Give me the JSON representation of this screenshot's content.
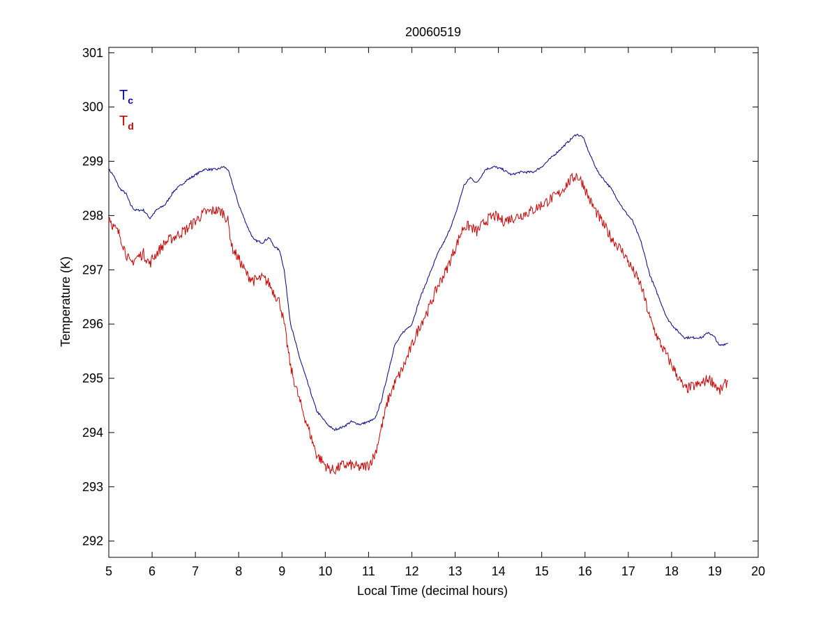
{
  "chart_data": {
    "type": "line",
    "title": "20060519",
    "xlabel": "Local Time (decimal hours)",
    "ylabel": "Temperature (K)",
    "xlim": [
      5,
      20
    ],
    "ylim": [
      291.7,
      301.1
    ],
    "xticks": [
      5,
      6,
      7,
      8,
      9,
      10,
      11,
      12,
      13,
      14,
      15,
      16,
      17,
      18,
      19,
      20
    ],
    "yticks": [
      292,
      293,
      294,
      295,
      296,
      297,
      298,
      299,
      300,
      301
    ],
    "grid": false,
    "legend": {
      "placement": "top-left",
      "entries": [
        {
          "main": "T",
          "sub": "c",
          "color": "#0000bf"
        },
        {
          "main": "T",
          "sub": "d",
          "color": "#cc0000"
        }
      ]
    },
    "series": [
      {
        "color": "#00008b",
        "noise": 0.02,
        "x": [
          5.0,
          5.1,
          5.25,
          5.4,
          5.5,
          5.6,
          5.8,
          5.95,
          6.0,
          6.1,
          6.3,
          6.5,
          6.8,
          7.0,
          7.2,
          7.5,
          7.65,
          7.75,
          7.85,
          8.0,
          8.2,
          8.35,
          8.55,
          8.7,
          8.8,
          8.95,
          9.05,
          9.2,
          9.4,
          9.6,
          9.8,
          9.95,
          10.05,
          10.2,
          10.4,
          10.6,
          10.8,
          11.0,
          11.15,
          11.3,
          11.45,
          11.6,
          11.8,
          12.0,
          12.2,
          12.4,
          12.6,
          12.8,
          13.0,
          13.2,
          13.35,
          13.5,
          13.7,
          13.9,
          14.1,
          14.3,
          14.5,
          14.8,
          15.0,
          15.2,
          15.4,
          15.6,
          15.8,
          15.95,
          16.1,
          16.3,
          16.6,
          16.9,
          17.1,
          17.3,
          17.5,
          17.7,
          17.9,
          18.1,
          18.3,
          18.5,
          18.7,
          18.85,
          19.0,
          19.1,
          19.3
        ],
        "y": [
          298.85,
          298.75,
          298.5,
          298.4,
          298.2,
          298.1,
          298.1,
          297.95,
          298.0,
          298.1,
          298.2,
          298.45,
          298.65,
          298.75,
          298.85,
          298.85,
          298.9,
          298.85,
          298.6,
          298.2,
          297.8,
          297.55,
          297.5,
          297.6,
          297.45,
          297.35,
          297.0,
          296.0,
          295.4,
          294.9,
          294.4,
          294.25,
          294.15,
          294.05,
          294.1,
          294.2,
          294.15,
          294.2,
          294.25,
          294.6,
          295.1,
          295.6,
          295.85,
          296.0,
          296.5,
          296.9,
          297.3,
          297.6,
          298.0,
          298.55,
          298.7,
          298.6,
          298.85,
          298.9,
          298.85,
          298.75,
          298.8,
          298.8,
          298.9,
          299.05,
          299.2,
          299.35,
          299.5,
          299.45,
          299.15,
          298.8,
          298.5,
          298.1,
          297.9,
          297.5,
          296.9,
          296.5,
          296.1,
          295.9,
          295.75,
          295.75,
          295.75,
          295.85,
          295.75,
          295.6,
          295.65
        ]
      },
      {
        "color": "#cc0000",
        "noise": 0.1,
        "x": [
          5.0,
          5.1,
          5.25,
          5.4,
          5.5,
          5.6,
          5.8,
          5.95,
          6.0,
          6.1,
          6.3,
          6.5,
          6.8,
          7.0,
          7.2,
          7.5,
          7.65,
          7.75,
          7.85,
          8.0,
          8.2,
          8.35,
          8.55,
          8.7,
          8.8,
          8.95,
          9.05,
          9.2,
          9.4,
          9.6,
          9.8,
          9.95,
          10.05,
          10.2,
          10.4,
          10.6,
          10.8,
          11.0,
          11.15,
          11.3,
          11.45,
          11.6,
          11.8,
          12.0,
          12.2,
          12.4,
          12.6,
          12.8,
          13.0,
          13.2,
          13.35,
          13.5,
          13.7,
          13.9,
          14.1,
          14.3,
          14.5,
          14.8,
          15.0,
          15.2,
          15.4,
          15.6,
          15.8,
          15.95,
          16.1,
          16.3,
          16.6,
          16.9,
          17.1,
          17.3,
          17.5,
          17.7,
          17.9,
          18.1,
          18.3,
          18.5,
          18.7,
          18.85,
          19.0,
          19.1,
          19.3
        ],
        "y": [
          298.0,
          297.8,
          297.65,
          297.3,
          297.1,
          297.2,
          297.3,
          297.1,
          297.2,
          297.3,
          297.5,
          297.6,
          297.75,
          297.9,
          298.05,
          298.1,
          298.05,
          297.9,
          297.4,
          297.2,
          296.9,
          296.8,
          296.85,
          296.75,
          296.6,
          296.4,
          296.0,
          295.2,
          294.6,
          294.1,
          293.6,
          293.45,
          293.35,
          293.3,
          293.4,
          293.4,
          293.35,
          293.4,
          293.6,
          294.1,
          294.6,
          294.9,
          295.2,
          295.6,
          296.0,
          296.3,
          296.7,
          297.0,
          297.4,
          297.8,
          297.8,
          297.7,
          297.9,
          298.0,
          297.9,
          297.95,
          298.0,
          298.1,
          298.2,
          298.3,
          298.4,
          298.6,
          298.75,
          298.6,
          298.3,
          298.0,
          297.6,
          297.3,
          297.0,
          296.7,
          296.1,
          295.7,
          295.4,
          295.1,
          294.8,
          294.85,
          294.9,
          295.0,
          294.9,
          294.75,
          294.95
        ]
      }
    ]
  }
}
